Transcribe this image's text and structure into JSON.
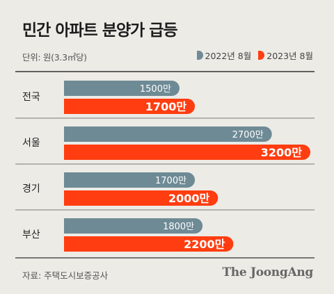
{
  "title": "민간 아파트 분양가 급등",
  "unit_label": "단위: 원(3.3㎡당)",
  "source": "자료: 주택도시보증공사",
  "brand": "The JoongAng",
  "colors": {
    "background": "#ecebe6",
    "series_2022": "#6e8a95",
    "series_2023": "#ff3d10",
    "divider": "#555555"
  },
  "chart_data": {
    "type": "bar",
    "orientation": "horizontal",
    "categories": [
      "전국",
      "서울",
      "경기",
      "부산"
    ],
    "series": [
      {
        "name": "2022년 8월",
        "values": [
          1500,
          2700,
          1700,
          1800
        ],
        "labels": [
          "1500만",
          "2700만",
          "1700만",
          "1800만"
        ]
      },
      {
        "name": "2023년 8월",
        "values": [
          1700,
          3200,
          2000,
          2200
        ],
        "labels": [
          "1700만",
          "3200만",
          "2000만",
          "2200만"
        ]
      }
    ],
    "xlim": [
      0,
      3200
    ],
    "legend": "top-right",
    "grid": false
  }
}
